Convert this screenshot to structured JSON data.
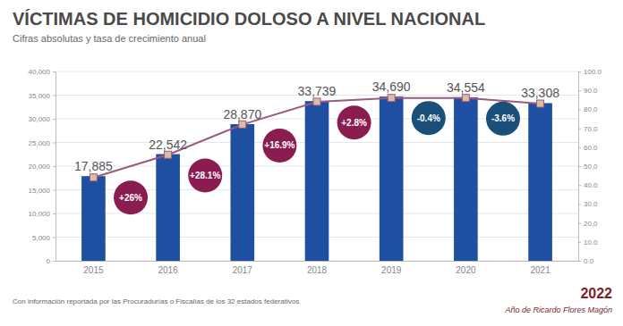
{
  "chart_data": {
    "type": "bar",
    "title": "VÍCTIMAS DE HOMICIDIO DOLOSO A NIVEL NACIONAL",
    "subtitle": "Cifras absolutas y tasa de crecimiento anual",
    "categories": [
      "2015",
      "2016",
      "2017",
      "2018",
      "2019",
      "2020",
      "2021"
    ],
    "series": [
      {
        "type": "bar",
        "color": "#1f4fa0",
        "values": [
          17885,
          22542,
          28870,
          33739,
          34690,
          34554,
          33308
        ],
        "value_labels": [
          "17,885",
          "22,542",
          "28,870",
          "33,739",
          "34,690",
          "34,554",
          "33,308"
        ]
      },
      {
        "type": "line",
        "axis": "y2",
        "color": "#9b5a7e",
        "marker": "square",
        "values": [
          44,
          56,
          72,
          84,
          86,
          86,
          83
        ]
      }
    ],
    "data_labels": true,
    "grid": true,
    "ylim": [
      0,
      40000
    ],
    "yticks": [
      0,
      {
        "value": 5000,
        "label": "5,000"
      },
      {
        "value": 10000,
        "label": "10,000"
      },
      {
        "value": 15000,
        "label": "15,000"
      },
      {
        "value": 20000,
        "label": "20,000"
      },
      {
        "value": 25000,
        "label": "25,000"
      },
      {
        "value": 30000,
        "label": "30,000"
      },
      {
        "value": 35000,
        "label": "35,000"
      },
      {
        "value": 40000,
        "label": "40,000"
      }
    ],
    "y2lim": [
      0,
      100
    ],
    "y2ticks": [
      {
        "value": 0,
        "label": "0.0"
      },
      {
        "value": 10,
        "label": "10.0"
      },
      {
        "value": 20,
        "label": "20.0"
      },
      {
        "value": 30,
        "label": "30.0"
      },
      {
        "value": 40,
        "label": "40.0"
      },
      {
        "value": 50,
        "label": "50.0"
      },
      {
        "value": 60,
        "label": "60.0"
      },
      {
        "value": 70,
        "label": "70.0"
      },
      {
        "value": 80,
        "label": "80.0"
      },
      {
        "value": 90,
        "label": "90.0"
      },
      {
        "value": 100,
        "label": "100.0"
      }
    ],
    "annotations": [
      {
        "category": "2016",
        "text": "+26%",
        "color": "#8b1c4f"
      },
      {
        "category": "2017",
        "text": "+28.1%",
        "color": "#8b1c4f"
      },
      {
        "category": "2018",
        "text": "+16.9%",
        "color": "#8b1c4f"
      },
      {
        "category": "2019",
        "text": "+2.8%",
        "color": "#8b1c4f"
      },
      {
        "category": "2020",
        "text": "-0.4%",
        "color": "#1a4f7a"
      },
      {
        "category": "2021",
        "text": "-3.6%",
        "color": "#1a4f7a"
      }
    ],
    "footnote": "Con información reportada por las Procuradurías o Fiscalías de los 32 estados federativos",
    "logo": [
      "2022",
      "Año de Ricardo Flores Magón"
    ]
  }
}
